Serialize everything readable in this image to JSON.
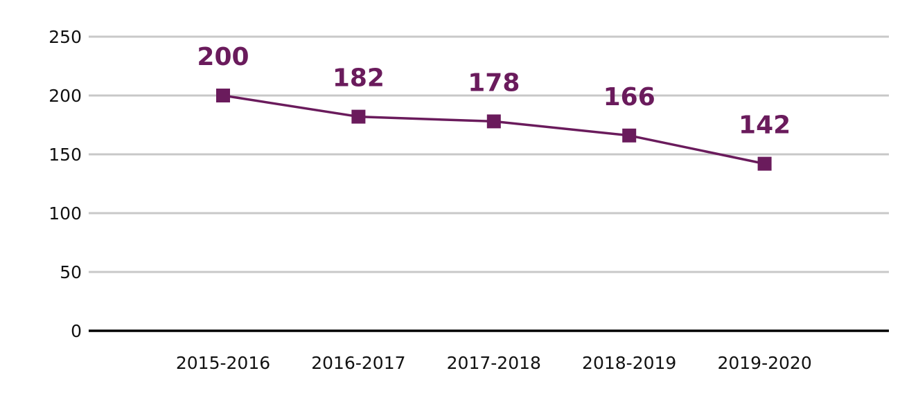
{
  "chart_data": {
    "type": "line",
    "categories": [
      "2015-2016",
      "2016-2017",
      "2017-2018",
      "2018-2019",
      "2019-2020"
    ],
    "values": [
      200,
      182,
      178,
      166,
      142
    ],
    "data_labels": [
      "200",
      "182",
      "178",
      "166",
      "142"
    ],
    "y_ticks": [
      0,
      50,
      100,
      150,
      200,
      250
    ],
    "y_tick_labels": [
      "0",
      "50",
      "100",
      "150",
      "200",
      "250"
    ],
    "ylim": [
      0,
      250
    ],
    "title": "",
    "xlabel": "",
    "ylabel": "",
    "grid": true,
    "legend": "none",
    "marker": "square",
    "colors": {
      "series": "#6a1b5c",
      "grid": "#c8c8c8",
      "axis": "#000000",
      "text": "#111111"
    }
  }
}
